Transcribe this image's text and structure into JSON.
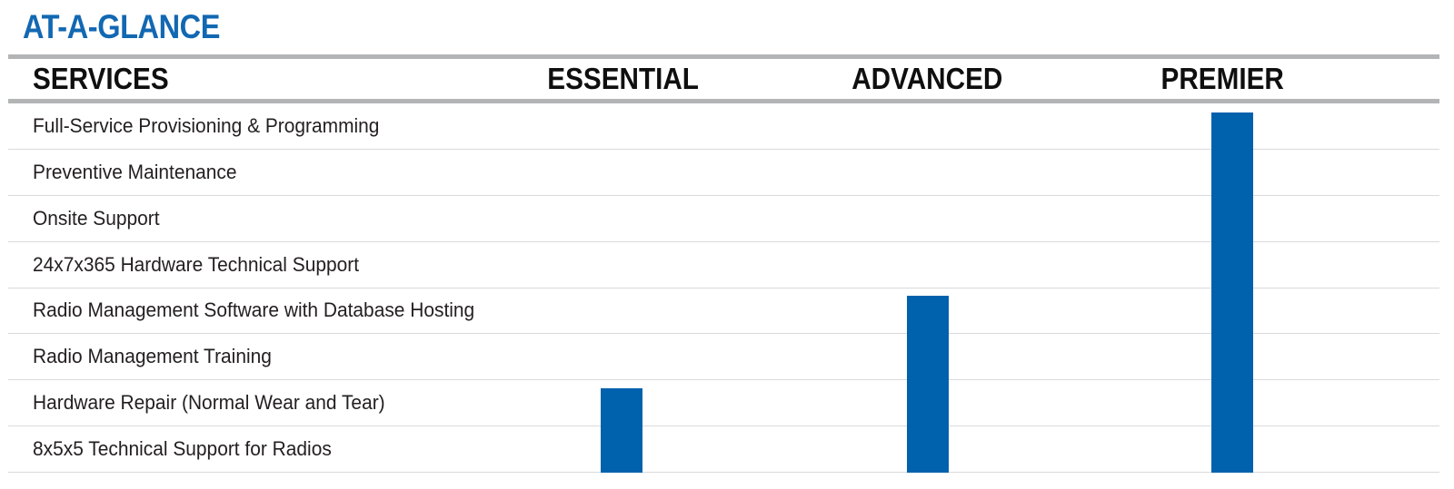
{
  "title": "AT-A-GLANCE",
  "table": {
    "services_header": "SERVICES",
    "services": [
      "Full-Service Provisioning & Programming",
      "Preventive Maintenance",
      "Onsite Support",
      "24x7x365 Hardware Technical Support",
      "Radio Management Software with Database Hosting",
      "Radio Management Training",
      "Hardware Repair (Normal Wear and Tear)",
      "8x5x5 Technical Support for Radios"
    ],
    "tiers": [
      {
        "label": "ESSENTIAL",
        "coverage_starts_at_service_index": 6,
        "included_services": [
          "Hardware Repair (Normal Wear and Tear)",
          "8x5x5 Technical Support for Radios"
        ]
      },
      {
        "label": "ADVANCED",
        "coverage_starts_at_service_index": 4,
        "included_services": [
          "Radio Management Software with Database Hosting",
          "Radio Management Training",
          "Hardware Repair (Normal Wear and Tear)",
          "8x5x5 Technical Support for Radios"
        ]
      },
      {
        "label": "PREMIER",
        "coverage_starts_at_service_index": 0,
        "included_services": [
          "Full-Service Provisioning & Programming",
          "Preventive Maintenance",
          "Onsite Support",
          "24x7x365 Hardware Technical Support",
          "Radio Management Software with Database Hosting",
          "Radio Management Training",
          "Hardware Repair (Normal Wear and Tear)",
          "8x5x5 Technical Support for Radios"
        ]
      }
    ]
  },
  "colors": {
    "title_blue": "#1268b2",
    "bar_blue": "#0061ad",
    "thick_rule_gray": "#b2b4b6",
    "thin_rule_gray": "#d9dadb",
    "text": "#231f20"
  }
}
